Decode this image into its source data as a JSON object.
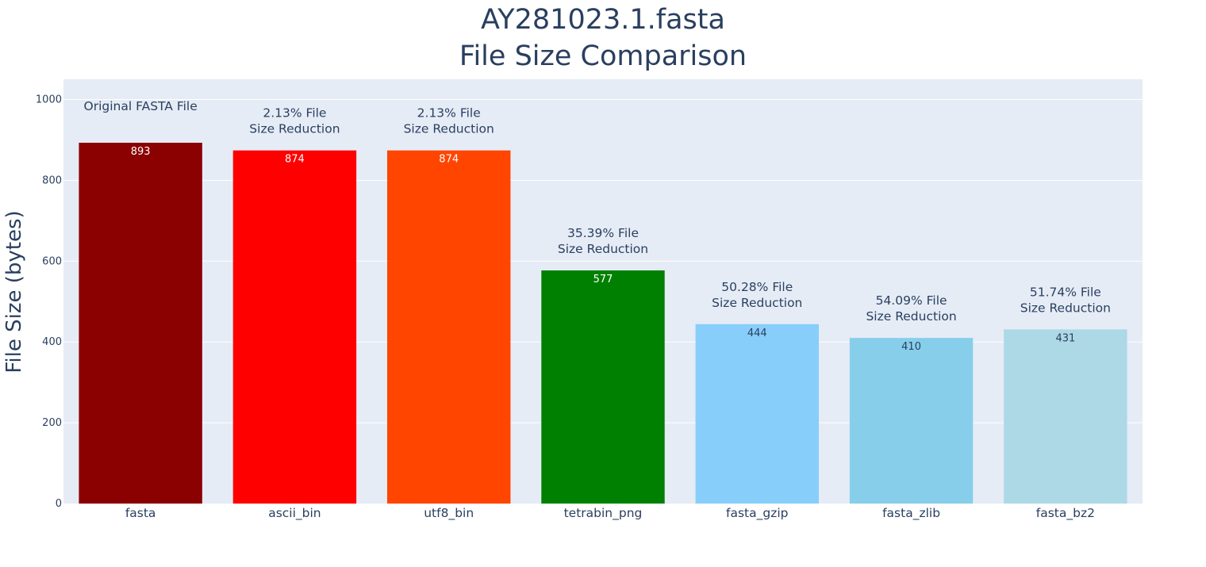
{
  "chart_data": {
    "type": "bar",
    "title_lines": [
      "AY281023.1.fasta",
      "File Size Comparison"
    ],
    "xlabel": "",
    "ylabel": "File Size (bytes)",
    "ylim": [
      0,
      1050
    ],
    "yticks": [
      0,
      200,
      400,
      600,
      800,
      1000
    ],
    "grid": true,
    "legend": "none",
    "plot_background": "#e5ecf6",
    "categories": [
      "fasta",
      "ascii_bin",
      "utf8_bin",
      "tetrabin_png",
      "fasta_gzip",
      "fasta_zlib",
      "fasta_bz2"
    ],
    "values": [
      893,
      874,
      874,
      577,
      444,
      410,
      431
    ],
    "bar_colors": [
      "#8b0000",
      "#ff0000",
      "#ff4500",
      "#008000",
      "#87cefa",
      "#87ceeb",
      "#add8e6"
    ],
    "bar_label_colors": [
      "#ffffff",
      "#ffffff",
      "#ffffff",
      "#ffffff",
      "#2a3f5f",
      "#2a3f5f",
      "#2a3f5f"
    ],
    "annotations": [
      [
        "Original FASTA File"
      ],
      [
        "2.13% File",
        "Size Reduction"
      ],
      [
        "2.13% File",
        "Size Reduction"
      ],
      [
        "35.39% File",
        "Size Reduction"
      ],
      [
        "50.28% File",
        "Size Reduction"
      ],
      [
        "54.09% File",
        "Size Reduction"
      ],
      [
        "51.74% File",
        "Size Reduction"
      ]
    ]
  }
}
